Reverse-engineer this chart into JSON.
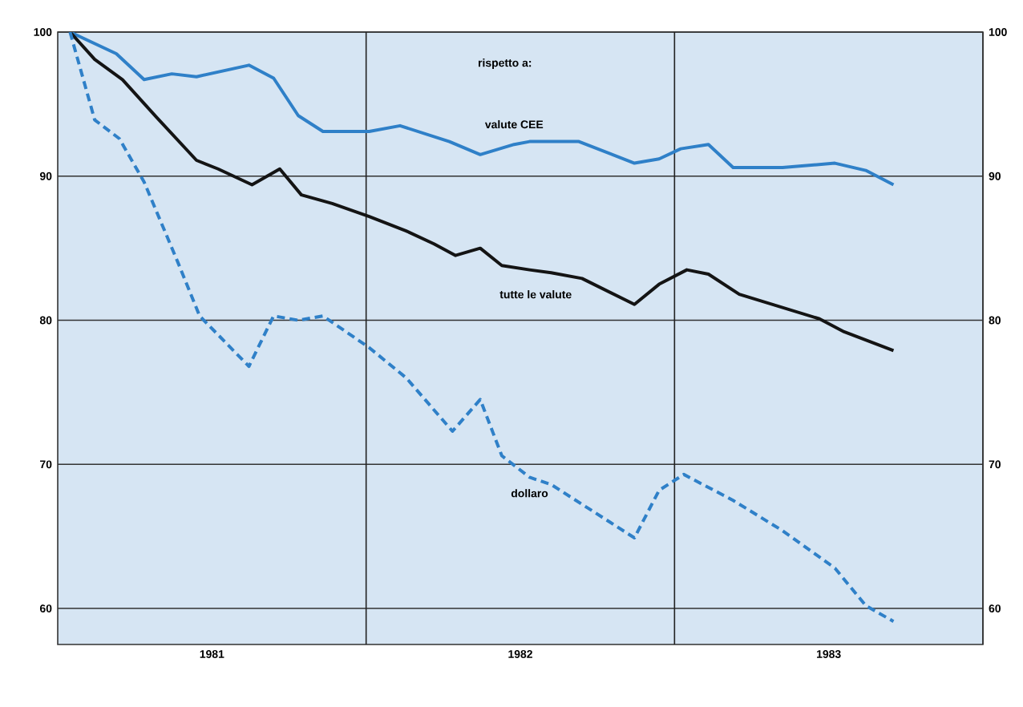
{
  "chart_data": {
    "type": "line",
    "annotations": [
      "rispetto a:"
    ],
    "xlim": [
      1981,
      1984
    ],
    "xticks": [
      {
        "value": 1981.5,
        "label": "1981"
      },
      {
        "value": 1982.5,
        "label": "1982"
      },
      {
        "value": 1983.5,
        "label": "1983"
      }
    ],
    "ylim": [
      57.5,
      100
    ],
    "yticks": [
      60,
      70,
      80,
      90,
      100
    ],
    "y2lim": [
      57.5,
      100
    ],
    "y2ticks": [
      60,
      70,
      80,
      90,
      100
    ],
    "grid": "y",
    "legend": false,
    "marker": "none",
    "ref_lines": [
      {
        "axis": "x",
        "value": 1982,
        "color": "#222222"
      },
      {
        "axis": "x",
        "value": 1983,
        "color": "#222222"
      }
    ],
    "series": [
      {
        "name": "valute CEE",
        "color": "#2f80c8",
        "line_style": "solid",
        "x": [
          1981.04,
          1981.19,
          1981.28,
          1981.37,
          1981.45,
          1981.62,
          1981.7,
          1981.78,
          1981.86,
          1982.01,
          1982.11,
          1982.27,
          1982.37,
          1982.48,
          1982.53,
          1982.69,
          1982.87,
          1982.95,
          1983.02,
          1983.11,
          1983.19,
          1983.35,
          1983.52,
          1983.62,
          1983.71
        ],
        "values": [
          100,
          98.5,
          96.7,
          97.1,
          96.9,
          97.7,
          96.8,
          94.2,
          93.1,
          93.1,
          93.5,
          92.4,
          91.5,
          92.2,
          92.4,
          92.4,
          90.9,
          91.2,
          91.9,
          92.2,
          90.6,
          90.6,
          90.9,
          90.4,
          89.4
        ]
      },
      {
        "name": "tutte le valute",
        "color": "#141414",
        "line_style": "solid",
        "x": [
          1981.04,
          1981.12,
          1981.21,
          1981.32,
          1981.45,
          1981.52,
          1981.63,
          1981.72,
          1981.79,
          1981.89,
          1982.01,
          1982.13,
          1982.22,
          1982.29,
          1982.37,
          1982.44,
          1982.53,
          1982.6,
          1982.7,
          1982.87,
          1982.95,
          1983.04,
          1983.11,
          1983.21,
          1983.47,
          1983.55,
          1983.71
        ],
        "values": [
          100,
          98.1,
          96.7,
          94.1,
          91.1,
          90.5,
          89.4,
          90.5,
          88.7,
          88.1,
          87.2,
          86.2,
          85.3,
          84.5,
          85.0,
          83.8,
          83.5,
          83.3,
          82.9,
          81.1,
          82.5,
          83.5,
          83.2,
          81.8,
          80.1,
          79.2,
          77.9
        ]
      },
      {
        "name": "dollaro",
        "color": "#2f80c8",
        "line_style": "dashed",
        "x": [
          1981.04,
          1981.12,
          1981.2,
          1981.28,
          1981.39,
          1981.46,
          1981.62,
          1981.7,
          1981.78,
          1981.86,
          1982.01,
          1982.13,
          1982.28,
          1982.37,
          1982.44,
          1982.53,
          1982.6,
          1982.87,
          1982.95,
          1983.03,
          1983.19,
          1983.35,
          1983.52,
          1983.62,
          1983.71
        ],
        "values": [
          100,
          93.9,
          92.6,
          89.6,
          84.0,
          80.3,
          76.8,
          80.3,
          80.0,
          80.3,
          78.1,
          76.0,
          72.3,
          74.5,
          70.6,
          69.1,
          68.6,
          64.9,
          68.2,
          69.3,
          67.5,
          65.4,
          62.8,
          60.2,
          59.1
        ]
      }
    ]
  }
}
